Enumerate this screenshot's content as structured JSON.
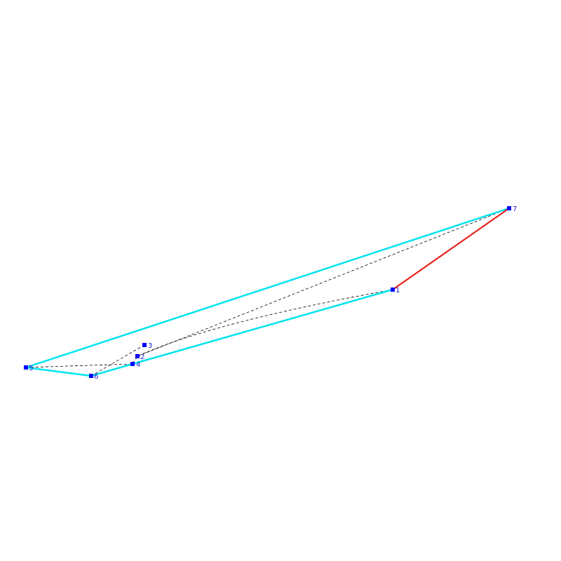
{
  "nodes": [
    {
      "label": "1"
    },
    {
      "label": "2"
    },
    {
      "label": "3"
    },
    {
      "label": "4"
    },
    {
      "label": "5"
    },
    {
      "label": "6"
    },
    {
      "label": "7"
    }
  ]
}
